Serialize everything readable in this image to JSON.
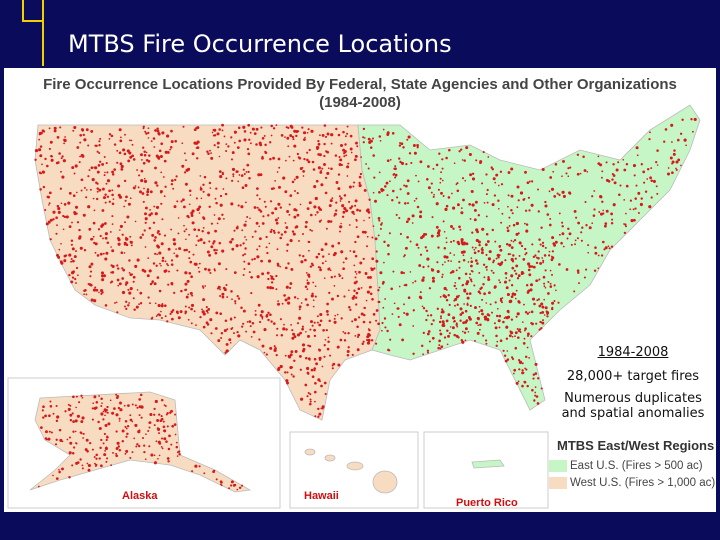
{
  "slide": {
    "title": "MTBS Fire Occurrence Locations"
  },
  "map": {
    "title": "Fire Occurrence Locations Provided By Federal, State Agencies and Other Organizations",
    "subtitle": "(1984-2008)",
    "insets": [
      "Alaska",
      "Hawaii",
      "Puerto Rico"
    ]
  },
  "annotations": [
    "1984-2008",
    "28,000+ target fires",
    "Numerous duplicates and spatial anomalies"
  ],
  "legend": {
    "title": "MTBS East/West Regions",
    "items": [
      {
        "label": "East U.S. (Fires > 500 ac)",
        "color": "#c6f5c6"
      },
      {
        "label": "West U.S. (Fires > 1,000 ac)",
        "color": "#f8dcc2"
      }
    ]
  }
}
